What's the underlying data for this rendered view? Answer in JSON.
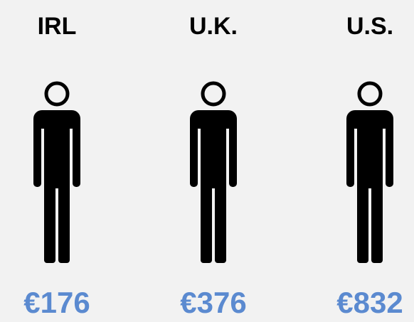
{
  "items": [
    {
      "label": "IRL",
      "value": "€176"
    },
    {
      "label": "U.K.",
      "value": "€376"
    },
    {
      "label": "U.S.",
      "value": "€832"
    }
  ]
}
